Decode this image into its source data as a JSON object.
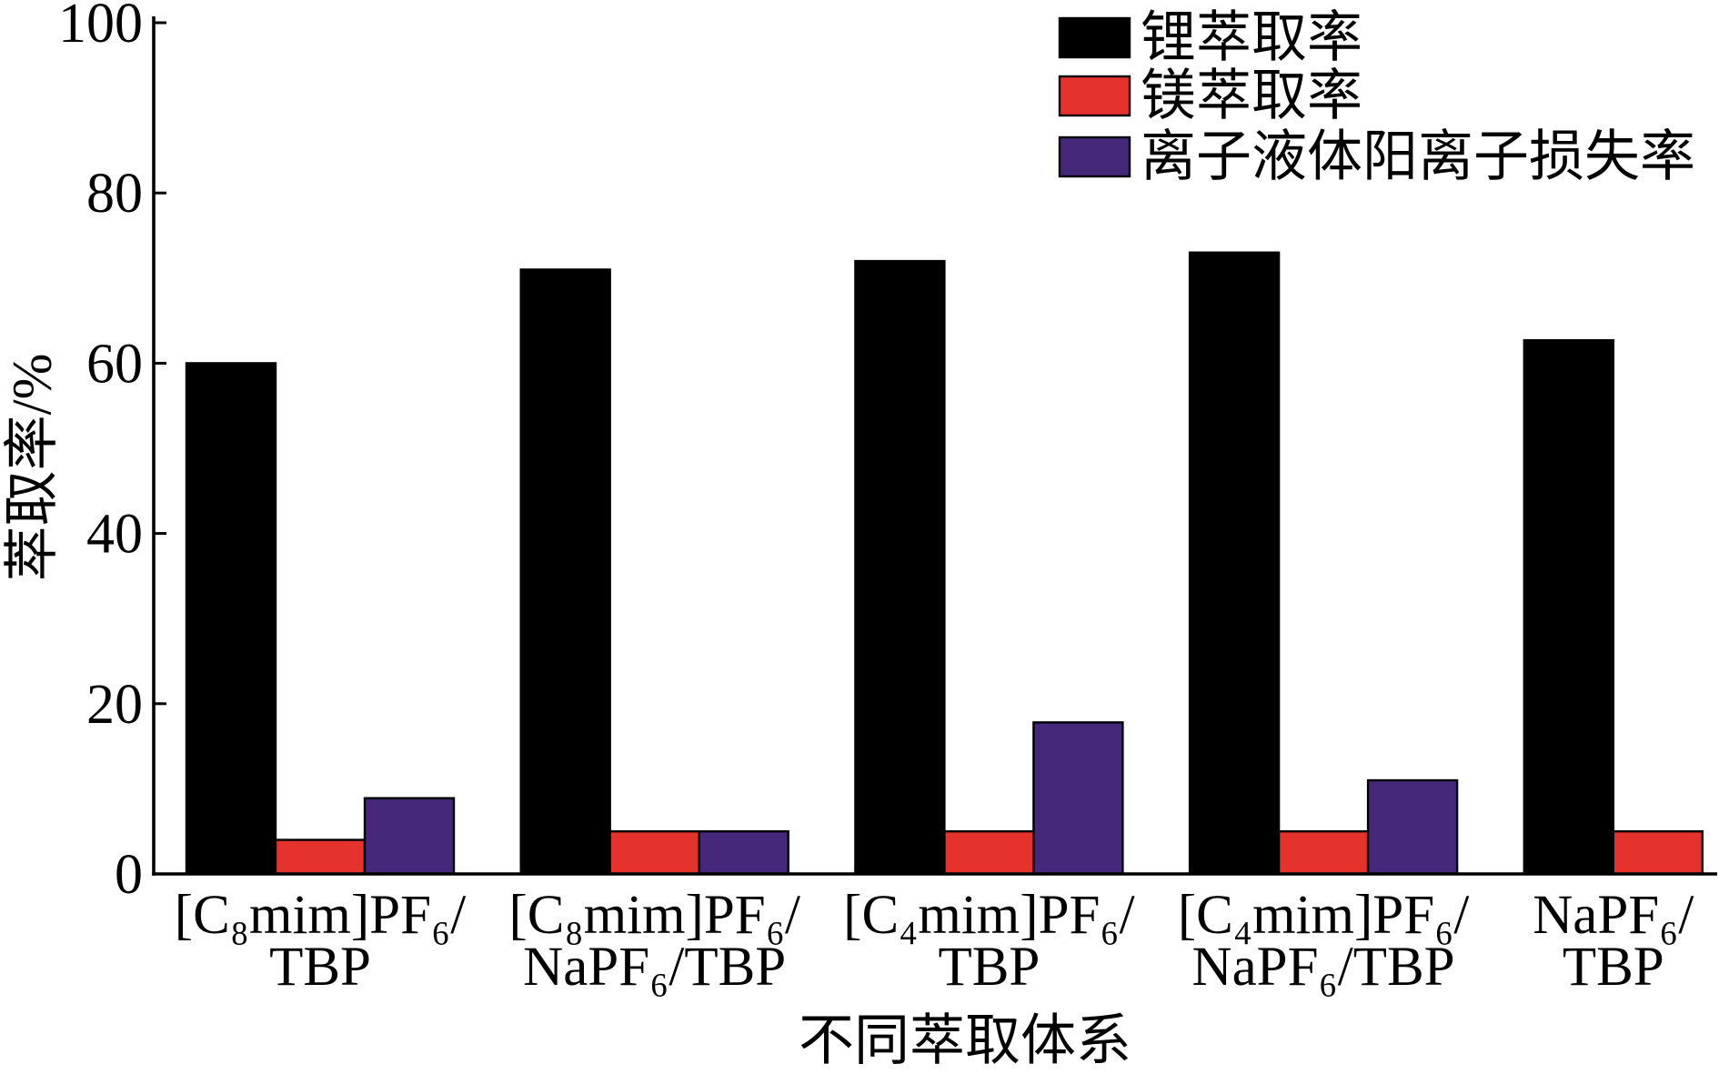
{
  "chart_data": {
    "type": "bar",
    "xlabel": "不同萃取体系",
    "ylabel": "萃取率/%",
    "ylim": [
      0,
      100
    ],
    "yticks": [
      0,
      20,
      40,
      60,
      80,
      100
    ],
    "categories": [
      "[C₈mim]PF₆/TBP",
      "[C₈mim]PF₆/NaPF₆/TBP",
      "[C₄mim]PF₆/TBP",
      "[C₄mim]PF₆/NaPF₆/TBP",
      "NaPF₆/TBP"
    ],
    "series": [
      {
        "name": "锂萃取率",
        "color": "#000000",
        "values": [
          60,
          71,
          72,
          73,
          62.7
        ]
      },
      {
        "name": "镁萃取率",
        "color": "#E6322D",
        "values": [
          4,
          5,
          5,
          5,
          5
        ]
      },
      {
        "name": "离子液体阳离子损失率",
        "color": "#45287A",
        "values": [
          8.9,
          5,
          17.8,
          11,
          null
        ]
      }
    ],
    "legend": "top-right",
    "grid": false
  }
}
